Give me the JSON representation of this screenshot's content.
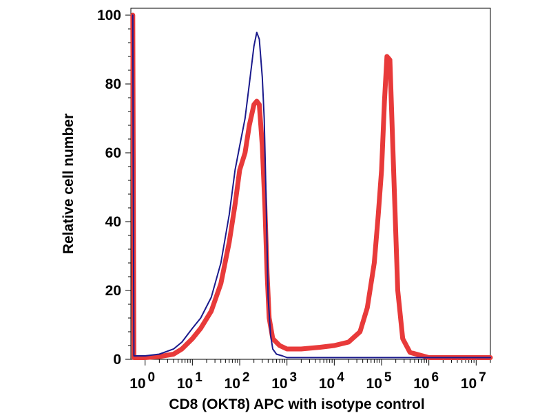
{
  "chart_data": {
    "type": "line",
    "title": "",
    "xlabel": "CD8 (OKT8) APC with isotype control",
    "ylabel": "Relative cell number",
    "x_scale": "log",
    "xlim": [
      0.5,
      20000000
    ],
    "ylim": [
      0,
      102
    ],
    "y_ticks": [
      0,
      20,
      40,
      60,
      80,
      100
    ],
    "x_ticks": [
      {
        "base": "10",
        "exp": "0",
        "value": 1
      },
      {
        "base": "10",
        "exp": "1",
        "value": 10
      },
      {
        "base": "10",
        "exp": "2",
        "value": 100
      },
      {
        "base": "10",
        "exp": "3",
        "value": 1000
      },
      {
        "base": "10",
        "exp": "4",
        "value": 10000
      },
      {
        "base": "10",
        "exp": "5",
        "value": 100000
      },
      {
        "base": "10",
        "exp": "6",
        "value": 1000000
      },
      {
        "base": "10",
        "exp": "7",
        "value": 10000000
      }
    ],
    "grid": false,
    "legend": "none",
    "series": [
      {
        "color": "#1a1a8c",
        "x": [
          0.55,
          0.58,
          1,
          2,
          4,
          6,
          10,
          15,
          25,
          40,
          60,
          80,
          100,
          130,
          160,
          200,
          230,
          260,
          300,
          330,
          360,
          400,
          450,
          500,
          600,
          800,
          1000,
          2000,
          5000,
          20000,
          100000,
          1000000,
          20000000
        ],
        "y": [
          100,
          1,
          1,
          1.5,
          3,
          5,
          9,
          12,
          18,
          28,
          42,
          55,
          62,
          70,
          80,
          91,
          95,
          93,
          82,
          70,
          48,
          18,
          7,
          3,
          1.5,
          1,
          0.5,
          0.5,
          0.5,
          0.5,
          0.5,
          0.5,
          0.5
        ]
      },
      {
        "color": "#e83a3a",
        "x": [
          0.55,
          0.58,
          1,
          2,
          4,
          6,
          10,
          15,
          25,
          40,
          60,
          80,
          100,
          130,
          160,
          200,
          230,
          260,
          300,
          340,
          380,
          420,
          500,
          700,
          1000,
          2000,
          5000,
          10000,
          20000,
          35000,
          50000,
          70000,
          85000,
          100000,
          115000,
          130000,
          150000,
          180000,
          220000,
          280000,
          400000,
          1000000,
          20000000
        ],
        "y": [
          100,
          0.5,
          0.5,
          0.8,
          1.5,
          3,
          6,
          9,
          14,
          22,
          34,
          45,
          55,
          60,
          68,
          74,
          75,
          74,
          62,
          45,
          25,
          12,
          6,
          4,
          3,
          3,
          3.5,
          4,
          5,
          8,
          15,
          28,
          42,
          55,
          75,
          88,
          87,
          55,
          20,
          6,
          2,
          0.5,
          0.5
        ]
      }
    ]
  }
}
